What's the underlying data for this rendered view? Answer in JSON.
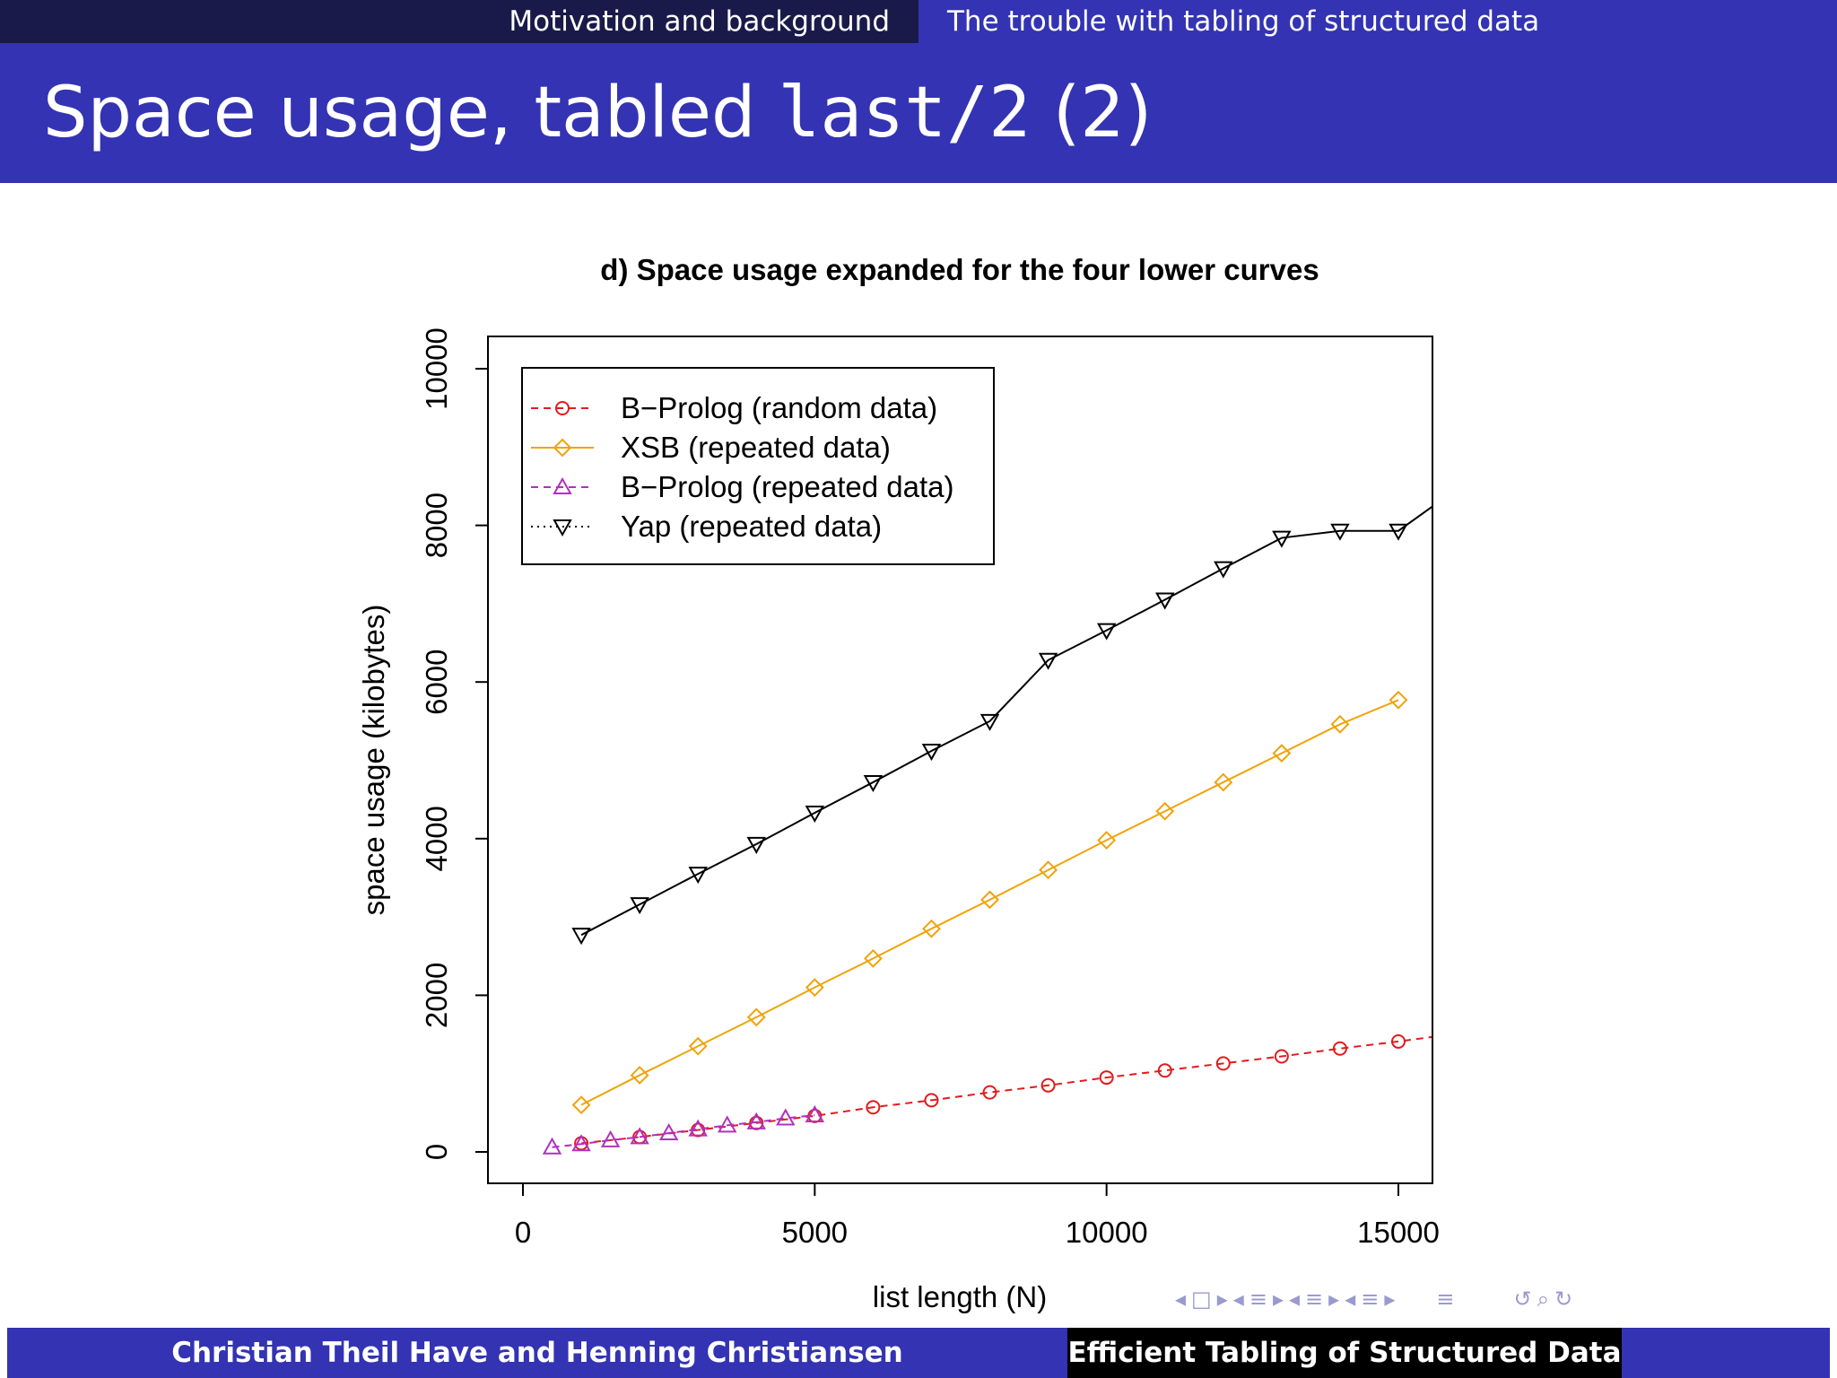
{
  "header": {
    "section_left": "Motivation and background",
    "section_right": "The trouble with tabling of structured data"
  },
  "slide": {
    "title_prefix": "Space usage, tabled ",
    "title_code": "last/2",
    "title_suffix": " (2)"
  },
  "footer": {
    "authors": "Christian Theil Have and Henning Christiansen",
    "talk_title": "Efficient Tabling of Structured Data"
  },
  "nav_icons": [
    "arrow-left-icon",
    "frame-icon",
    "arrow-right-icon",
    "arrow-left-icon",
    "subsection-icon",
    "arrow-right-icon",
    "arrow-left-icon",
    "section-icon",
    "arrow-right-icon",
    "arrow-left-icon",
    "section-icon",
    "arrow-right-icon",
    "align-icon",
    "undo-icon",
    "zoom-icon",
    "redo-icon"
  ],
  "chart_data": {
    "type": "line",
    "title": "d) Space usage expanded for the four lower curves",
    "xlabel": "list length (N)",
    "ylabel": "space usage (kilobytes)",
    "xlim": [
      0,
      15600
    ],
    "ylim": [
      0,
      10000
    ],
    "xticks": [
      0,
      5000,
      10000,
      15000
    ],
    "yticks": [
      0,
      2000,
      4000,
      6000,
      8000,
      10000
    ],
    "legend_position": "top-left",
    "series": [
      {
        "name": "B−Prolog (random data)",
        "color": "#e31a1c",
        "line_style": "dashed",
        "marker": "circle",
        "x": [
          1000,
          2000,
          3000,
          4000,
          5000,
          6000,
          7000,
          8000,
          9000,
          10000,
          11000,
          12000,
          13000,
          14000,
          15000,
          15600
        ],
        "y": [
          110,
          190,
          280,
          370,
          460,
          570,
          660,
          760,
          850,
          950,
          1040,
          1130,
          1220,
          1320,
          1410,
          1470
        ],
        "marker_count": 15
      },
      {
        "name": "XSB (repeated data)",
        "color": "#f0a30a",
        "line_style": "solid",
        "marker": "diamond",
        "x": [
          1000,
          2000,
          3000,
          4000,
          5000,
          6000,
          7000,
          8000,
          9000,
          10000,
          11000,
          12000,
          13000,
          14000,
          15000
        ],
        "y": [
          600,
          980,
          1350,
          1720,
          2100,
          2470,
          2850,
          3220,
          3600,
          3980,
          4350,
          4720,
          5090,
          5460,
          5770
        ],
        "marker_count": 15
      },
      {
        "name": "B−Prolog (repeated data)",
        "color": "#b030c0",
        "line_style": "dashed",
        "marker": "triangle-up",
        "x": [
          500,
          1000,
          1500,
          2000,
          2500,
          3000,
          3500,
          4000,
          4500,
          5000
        ],
        "y": [
          60,
          100,
          150,
          190,
          240,
          290,
          340,
          380,
          430,
          470
        ],
        "marker_count": 10
      },
      {
        "name": "Yap (repeated data)",
        "color": "#000000",
        "line_style": "solid",
        "marker": "triangle-down",
        "x": [
          1000,
          2000,
          3000,
          4000,
          5000,
          6000,
          7000,
          8000,
          9000,
          10000,
          11000,
          12000,
          13000,
          14000,
          15000,
          15600
        ],
        "y": [
          2770,
          3160,
          3550,
          3930,
          4330,
          4720,
          5120,
          5500,
          6280,
          6660,
          7050,
          7450,
          7840,
          7930,
          7930,
          8250
        ],
        "marker_count": 15
      }
    ]
  }
}
